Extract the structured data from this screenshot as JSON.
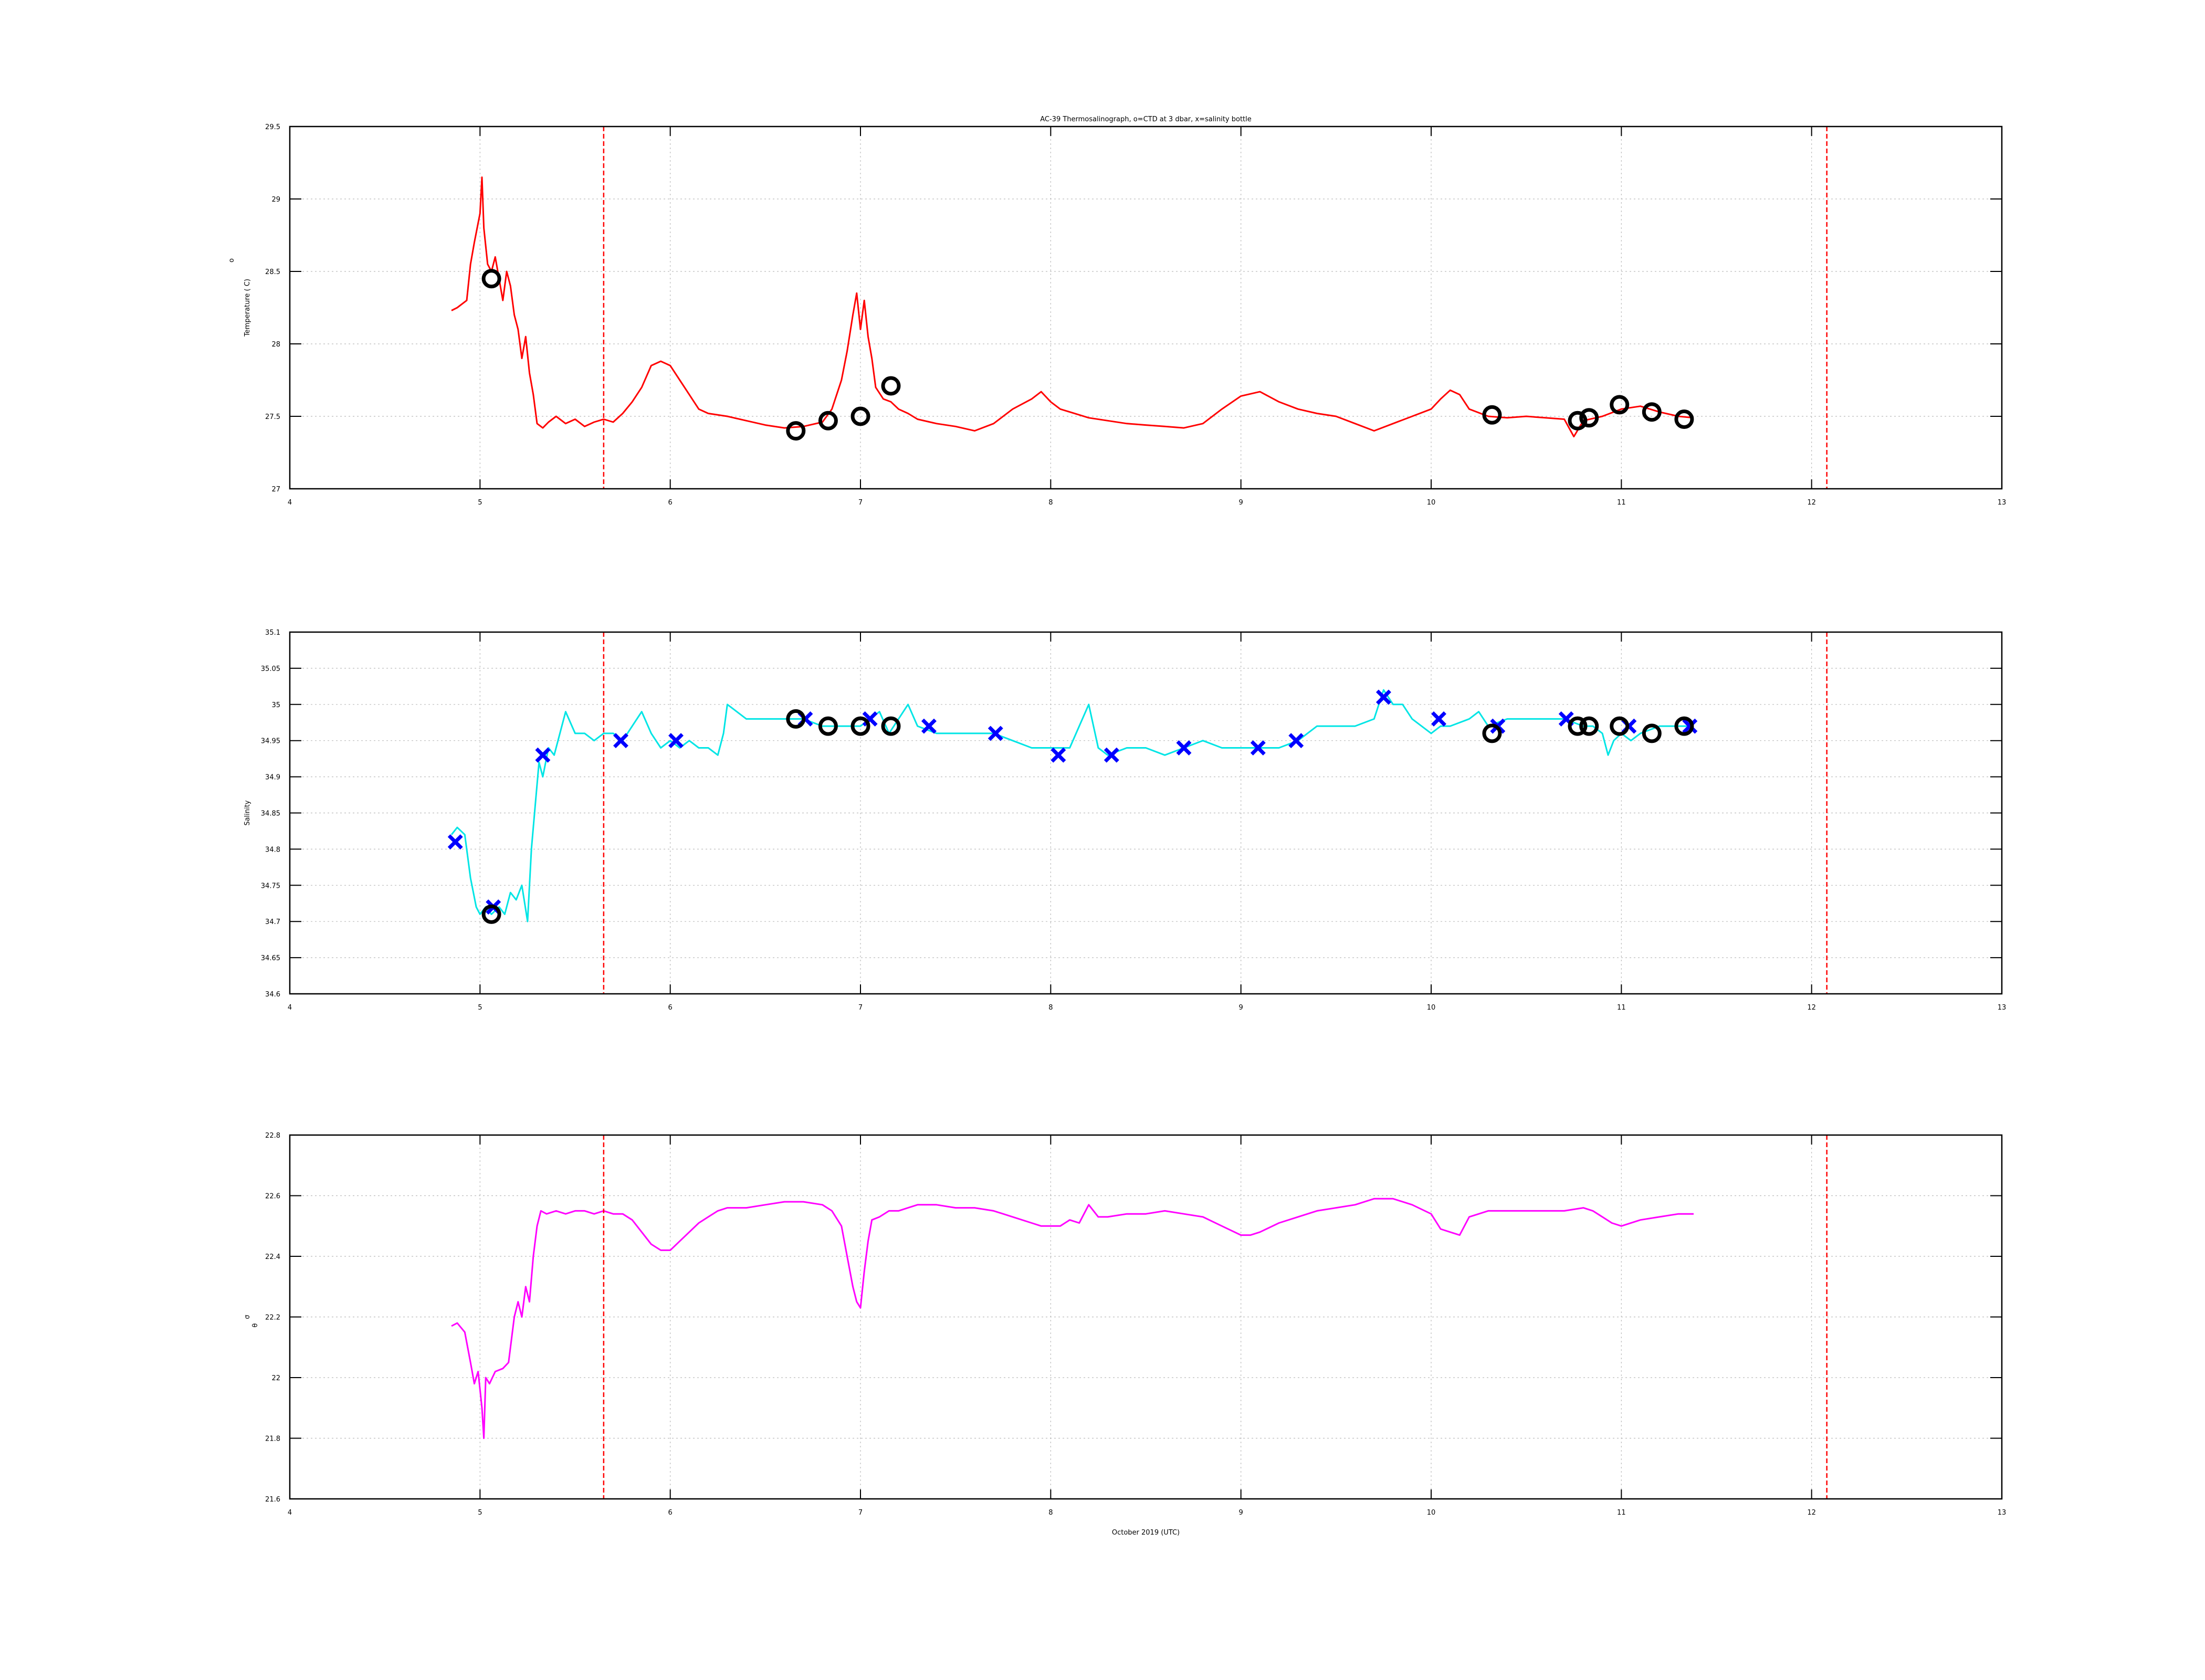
{
  "chart_data": [
    {
      "type": "line",
      "title": "AC-39 Thermosalinograph, o=CTD at 3 dbar, x=salinity bottle",
      "ylabel": "Temperature ( C)",
      "ylabel_super": "o",
      "xlim": [
        4,
        13
      ],
      "ylim": [
        27,
        29.5
      ],
      "x_ticks": [
        "4",
        "5",
        "6",
        "7",
        "8",
        "9",
        "10",
        "11",
        "12",
        "13"
      ],
      "y_ticks": [
        "27",
        "27.5",
        "28",
        "28.5",
        "29",
        "29.5"
      ],
      "grid": true,
      "line_color": "#ff0000",
      "marker_color_ctd": "#000000",
      "marker_color_bottle": "#0000ff",
      "vlines": [
        5.65,
        12.08
      ],
      "series": [
        {
          "kind": "line",
          "x": [
            4.85,
            4.88,
            4.93,
            4.95,
            4.97,
            5.0,
            5.01,
            5.02,
            5.04,
            5.06,
            5.08,
            5.1,
            5.12,
            5.14,
            5.16,
            5.18,
            5.2,
            5.22,
            5.24,
            5.26,
            5.28,
            5.3,
            5.33,
            5.36,
            5.4,
            5.45,
            5.5,
            5.55,
            5.6,
            5.65,
            5.7,
            5.75,
            5.8,
            5.85,
            5.9,
            5.95,
            6.0,
            6.05,
            6.1,
            6.15,
            6.2,
            6.3,
            6.4,
            6.5,
            6.6,
            6.7,
            6.8,
            6.85,
            6.9,
            6.93,
            6.96,
            6.98,
            7.0,
            7.02,
            7.04,
            7.06,
            7.08,
            7.12,
            7.16,
            7.2,
            7.25,
            7.3,
            7.4,
            7.5,
            7.6,
            7.7,
            7.8,
            7.9,
            7.95,
            8.0,
            8.05,
            8.1,
            8.2,
            8.3,
            8.4,
            8.5,
            8.6,
            8.7,
            8.8,
            8.9,
            9.0,
            9.1,
            9.2,
            9.3,
            9.4,
            9.5,
            9.6,
            9.7,
            9.8,
            9.9,
            10.0,
            10.05,
            10.1,
            10.15,
            10.2,
            10.3,
            10.4,
            10.5,
            10.6,
            10.7,
            10.75,
            10.8,
            10.9,
            11.0,
            11.1,
            11.2,
            11.3,
            11.38
          ],
          "y": [
            28.23,
            28.25,
            28.3,
            28.55,
            28.7,
            28.9,
            29.15,
            28.8,
            28.55,
            28.5,
            28.6,
            28.45,
            28.3,
            28.5,
            28.4,
            28.2,
            28.1,
            27.9,
            28.05,
            27.8,
            27.65,
            27.45,
            27.42,
            27.46,
            27.5,
            27.45,
            27.48,
            27.43,
            27.46,
            27.48,
            27.46,
            27.52,
            27.6,
            27.7,
            27.85,
            27.88,
            27.85,
            27.75,
            27.65,
            27.55,
            27.52,
            27.5,
            27.47,
            27.44,
            27.42,
            27.43,
            27.46,
            27.55,
            27.75,
            27.95,
            28.2,
            28.35,
            28.1,
            28.3,
            28.05,
            27.9,
            27.7,
            27.62,
            27.6,
            27.55,
            27.52,
            27.48,
            27.45,
            27.43,
            27.4,
            27.45,
            27.55,
            27.62,
            27.67,
            27.6,
            27.55,
            27.53,
            27.49,
            27.47,
            27.45,
            27.44,
            27.43,
            27.42,
            27.45,
            27.55,
            27.64,
            27.67,
            27.6,
            27.55,
            27.52,
            27.5,
            27.45,
            27.4,
            27.45,
            27.5,
            27.55,
            27.62,
            27.68,
            27.65,
            27.55,
            27.5,
            27.49,
            27.5,
            27.49,
            27.48,
            27.36,
            27.47,
            27.5,
            27.55,
            27.57,
            27.53,
            27.5,
            27.49
          ]
        },
        {
          "kind": "circles",
          "name": "CTD",
          "x": [
            5.06,
            6.66,
            6.83,
            7.0,
            7.16,
            10.32,
            10.77,
            10.83,
            10.99,
            11.16,
            11.33
          ],
          "y": [
            28.45,
            27.4,
            27.47,
            27.5,
            27.71,
            27.51,
            27.47,
            27.49,
            27.58,
            27.53,
            27.48
          ]
        }
      ]
    },
    {
      "type": "line",
      "ylabel": "Salinity",
      "xlim": [
        4,
        13
      ],
      "ylim": [
        34.6,
        35.1
      ],
      "x_ticks": [
        "4",
        "5",
        "6",
        "7",
        "8",
        "9",
        "10",
        "11",
        "12",
        "13"
      ],
      "y_ticks": [
        "34.6",
        "34.65",
        "34.7",
        "34.75",
        "34.8",
        "34.85",
        "34.9",
        "34.95",
        "35",
        "35.05",
        "35.1"
      ],
      "grid": true,
      "line_color": "#00e5e5",
      "vlines": [
        5.65,
        12.08
      ],
      "series": [
        {
          "kind": "line",
          "x": [
            4.85,
            4.88,
            4.92,
            4.95,
            4.98,
            5.0,
            5.03,
            5.06,
            5.1,
            5.13,
            5.16,
            5.19,
            5.22,
            5.25,
            5.27,
            5.29,
            5.31,
            5.33,
            5.36,
            5.39,
            5.42,
            5.45,
            5.5,
            5.55,
            5.6,
            5.65,
            5.7,
            5.75,
            5.8,
            5.85,
            5.9,
            5.95,
            6.0,
            6.05,
            6.1,
            6.15,
            6.2,
            6.25,
            6.28,
            6.3,
            6.4,
            6.5,
            6.6,
            6.7,
            6.8,
            6.9,
            7.0,
            7.05,
            7.1,
            7.15,
            7.2,
            7.25,
            7.3,
            7.4,
            7.5,
            7.6,
            7.7,
            7.8,
            7.9,
            8.0,
            8.1,
            8.15,
            8.2,
            8.25,
            8.3,
            8.4,
            8.5,
            8.6,
            8.7,
            8.8,
            8.9,
            9.0,
            9.1,
            9.2,
            9.3,
            9.4,
            9.5,
            9.6,
            9.7,
            9.75,
            9.8,
            9.85,
            9.9,
            10.0,
            10.05,
            10.1,
            10.2,
            10.25,
            10.3,
            10.4,
            10.5,
            10.6,
            10.7,
            10.8,
            10.85,
            10.9,
            10.93,
            10.96,
            11.0,
            11.05,
            11.1,
            11.2,
            11.3,
            11.38
          ],
          "y": [
            34.82,
            34.83,
            34.82,
            34.76,
            34.72,
            34.71,
            34.72,
            34.71,
            34.72,
            34.71,
            34.74,
            34.73,
            34.75,
            34.7,
            34.8,
            34.86,
            34.92,
            34.9,
            34.94,
            34.93,
            34.96,
            34.99,
            34.96,
            34.96,
            34.95,
            34.96,
            34.96,
            34.95,
            34.97,
            34.99,
            34.96,
            34.94,
            34.95,
            34.94,
            34.95,
            34.94,
            34.94,
            34.93,
            34.96,
            35.0,
            34.98,
            34.98,
            34.98,
            34.98,
            34.97,
            34.97,
            34.97,
            34.98,
            34.99,
            34.96,
            34.98,
            35.0,
            34.97,
            34.96,
            34.96,
            34.96,
            34.96,
            34.95,
            34.94,
            34.94,
            34.94,
            34.97,
            35.0,
            34.94,
            34.93,
            34.94,
            34.94,
            34.93,
            34.94,
            34.95,
            34.94,
            34.94,
            34.94,
            34.94,
            34.95,
            34.97,
            34.97,
            34.97,
            34.98,
            35.02,
            35.0,
            35.0,
            34.98,
            34.96,
            34.97,
            34.97,
            34.98,
            34.99,
            34.97,
            34.98,
            34.98,
            34.98,
            34.98,
            34.97,
            34.97,
            34.96,
            34.93,
            34.95,
            34.96,
            34.95,
            34.96,
            34.97,
            34.97,
            34.97
          ]
        },
        {
          "kind": "crosses",
          "name": "salinity bottle",
          "x": [
            4.87,
            5.07,
            5.33,
            5.74,
            6.03,
            6.71,
            7.05,
            7.36,
            7.71,
            8.04,
            8.32,
            8.7,
            9.09,
            9.29,
            9.75,
            10.04,
            10.35,
            10.71,
            11.04,
            11.36
          ],
          "y": [
            34.81,
            34.72,
            34.93,
            34.95,
            34.95,
            34.98,
            34.98,
            34.97,
            34.96,
            34.93,
            34.93,
            34.94,
            34.94,
            34.95,
            35.01,
            34.98,
            34.97,
            34.98,
            34.97,
            34.97
          ]
        },
        {
          "kind": "circles",
          "name": "CTD",
          "x": [
            5.06,
            6.66,
            6.83,
            7.0,
            7.16,
            10.32,
            10.77,
            10.83,
            10.99,
            11.16,
            11.33
          ],
          "y": [
            34.71,
            34.98,
            34.97,
            34.97,
            34.97,
            34.96,
            34.97,
            34.97,
            34.97,
            34.96,
            34.97
          ]
        }
      ]
    },
    {
      "type": "line",
      "xlabel": "October 2019 (UTC)",
      "ylabel": "σ",
      "ylabel_sub": "θ",
      "xlim": [
        4,
        13
      ],
      "ylim": [
        21.6,
        22.8
      ],
      "x_ticks": [
        "4",
        "5",
        "6",
        "7",
        "8",
        "9",
        "10",
        "11",
        "12",
        "13"
      ],
      "y_ticks": [
        "21.6",
        "21.8",
        "22",
        "22.2",
        "22.4",
        "22.6",
        "22.8"
      ],
      "grid": true,
      "line_color": "#ff00ff",
      "vlines": [
        5.65,
        12.08
      ],
      "series": [
        {
          "kind": "line",
          "x": [
            4.85,
            4.88,
            4.92,
            4.95,
            4.97,
            4.99,
            5.01,
            5.02,
            5.03,
            5.05,
            5.08,
            5.12,
            5.15,
            5.18,
            5.2,
            5.22,
            5.24,
            5.26,
            5.28,
            5.3,
            5.32,
            5.35,
            5.4,
            5.45,
            5.5,
            5.55,
            5.6,
            5.65,
            5.7,
            5.75,
            5.8,
            5.85,
            5.9,
            5.95,
            6.0,
            6.05,
            6.1,
            6.15,
            6.2,
            6.25,
            6.3,
            6.4,
            6.5,
            6.6,
            6.7,
            6.8,
            6.85,
            6.9,
            6.93,
            6.96,
            6.98,
            7.0,
            7.02,
            7.04,
            7.06,
            7.1,
            7.15,
            7.2,
            7.25,
            7.3,
            7.4,
            7.5,
            7.6,
            7.7,
            7.8,
            7.9,
            7.95,
            8.0,
            8.05,
            8.1,
            8.15,
            8.2,
            8.25,
            8.3,
            8.4,
            8.5,
            8.6,
            8.7,
            8.8,
            8.9,
            9.0,
            9.05,
            9.1,
            9.2,
            9.3,
            9.4,
            9.5,
            9.6,
            9.7,
            9.8,
            9.9,
            10.0,
            10.02,
            10.05,
            10.1,
            10.15,
            10.2,
            10.3,
            10.4,
            10.5,
            10.6,
            10.7,
            10.8,
            10.85,
            10.9,
            10.95,
            11.0,
            11.1,
            11.2,
            11.3,
            11.38
          ],
          "y": [
            22.17,
            22.18,
            22.15,
            22.05,
            21.98,
            22.02,
            21.9,
            21.8,
            22.0,
            21.98,
            22.02,
            22.03,
            22.05,
            22.2,
            22.25,
            22.2,
            22.3,
            22.25,
            22.4,
            22.5,
            22.55,
            22.54,
            22.55,
            22.54,
            22.55,
            22.55,
            22.54,
            22.55,
            22.54,
            22.54,
            22.52,
            22.48,
            22.44,
            22.42,
            22.42,
            22.45,
            22.48,
            22.51,
            22.53,
            22.55,
            22.56,
            22.56,
            22.57,
            22.58,
            22.58,
            22.57,
            22.55,
            22.5,
            22.4,
            22.3,
            22.25,
            22.23,
            22.35,
            22.45,
            22.52,
            22.53,
            22.55,
            22.55,
            22.56,
            22.57,
            22.57,
            22.56,
            22.56,
            22.55,
            22.53,
            22.51,
            22.5,
            22.5,
            22.5,
            22.52,
            22.51,
            22.57,
            22.53,
            22.53,
            22.54,
            22.54,
            22.55,
            22.54,
            22.53,
            22.5,
            22.47,
            22.47,
            22.48,
            22.51,
            22.53,
            22.55,
            22.56,
            22.57,
            22.59,
            22.59,
            22.57,
            22.54,
            22.52,
            22.49,
            22.48,
            22.47,
            22.53,
            22.55,
            22.55,
            22.55,
            22.55,
            22.55,
            22.56,
            22.55,
            22.53,
            22.51,
            22.5,
            22.52,
            22.53,
            22.54,
            22.54
          ]
        }
      ]
    }
  ]
}
